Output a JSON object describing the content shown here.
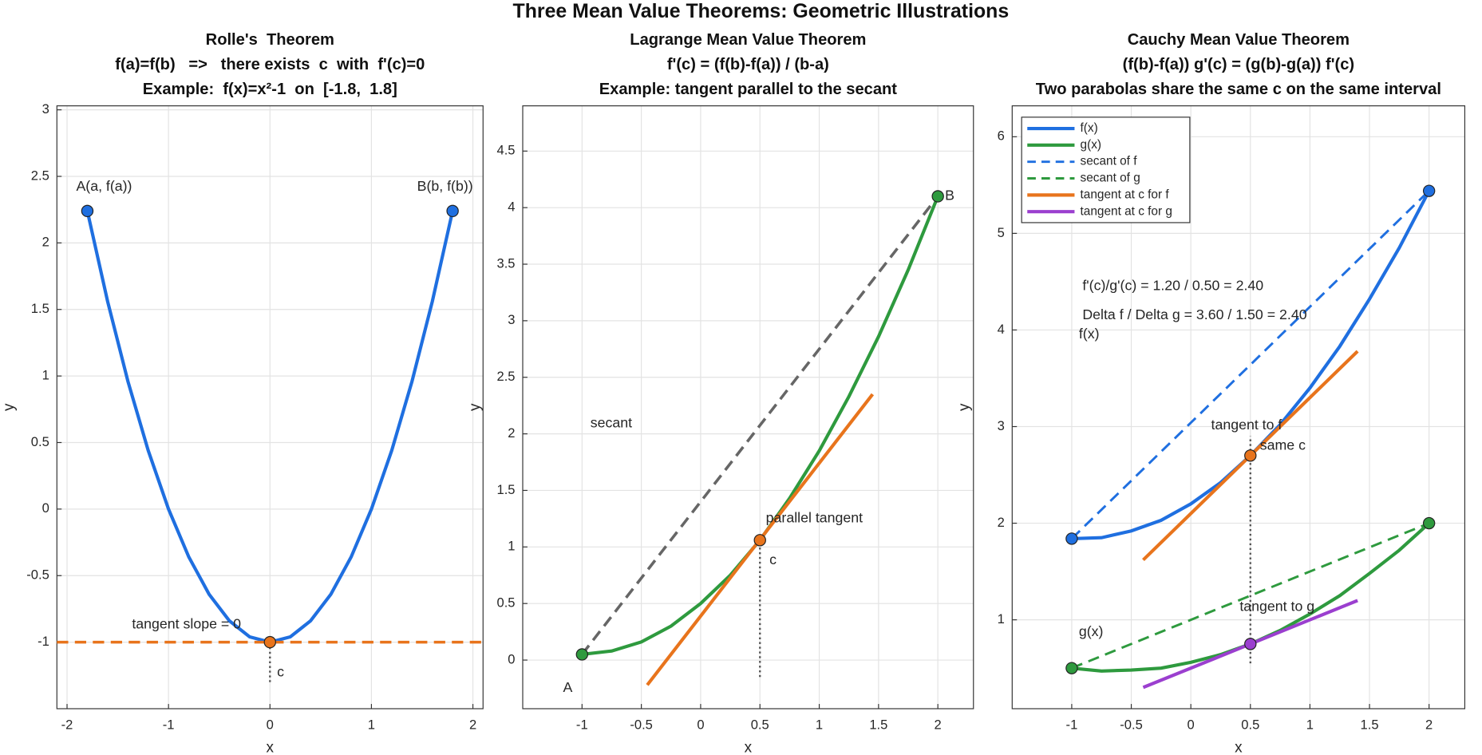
{
  "title": "Three Mean Value Theorems: Geometric Illustrations",
  "chart_data": [
    {
      "type": "line",
      "title": [
        "Rolle's  Theorem",
        "f(a)=f(b)   =>   there exists  c  with  f'(c)=0",
        "Example:  f(x)=x²-1  on  [-1.8,  1.8]"
      ],
      "xlabel": "x",
      "ylabel": "y",
      "xlim": [
        -2.1,
        2.1
      ],
      "ylim": [
        -1.5,
        3.03
      ],
      "xticks": [
        -2,
        -1,
        0,
        1,
        2
      ],
      "yticks": [
        -1,
        -0.5,
        0,
        0.5,
        1,
        1.5,
        2,
        2.5,
        3
      ],
      "grid": true,
      "series": [
        {
          "style": "solid",
          "color": "#1f6fe0",
          "x": [
            -1.8,
            -1.6,
            -1.4,
            -1.2,
            -1,
            -0.8,
            -0.6,
            -0.4,
            -0.2,
            0,
            0.2,
            0.4,
            0.6,
            0.8,
            1,
            1.2,
            1.4,
            1.6,
            1.8
          ],
          "values": [
            2.24,
            1.56,
            0.96,
            0.44,
            0,
            -0.36,
            -0.64,
            -0.84,
            -0.96,
            -1,
            -0.96,
            -0.84,
            -0.64,
            -0.36,
            0,
            0.44,
            0.96,
            1.56,
            2.24
          ]
        },
        {
          "style": "dashed",
          "color": "#e8741c",
          "x": [
            -2.1,
            2.1
          ],
          "values": [
            -1,
            -1
          ]
        },
        {
          "style": "dotted",
          "color": "#555555",
          "x": [
            0,
            0
          ],
          "values": [
            -1.3,
            -1
          ]
        },
        {
          "style": "marker",
          "color": "#1f6fe0",
          "x": [
            -1.8,
            1.8
          ],
          "values": [
            2.24,
            2.24
          ]
        },
        {
          "style": "marker",
          "color": "#e8741c",
          "x": [
            0
          ],
          "values": [
            -1
          ]
        }
      ],
      "annotations": [
        {
          "text": "A(a, f(a))",
          "color": "#222222"
        },
        {
          "text": "B(b, f(b))",
          "color": "#222222"
        },
        {
          "text": "tangent slope = 0",
          "color": "#e8741c"
        },
        {
          "text": "c",
          "color": "#222222"
        }
      ]
    },
    {
      "type": "line",
      "title": [
        "Lagrange Mean Value Theorem",
        "f'(c) = (f(b)-f(a)) / (b-a)",
        "Example: tangent parallel to the secant"
      ],
      "xlabel": "x",
      "ylabel": "y",
      "xlim": [
        -1.5,
        2.3
      ],
      "ylim": [
        -0.43,
        4.9
      ],
      "xticks": [
        -1,
        -0.5,
        0,
        0.5,
        1,
        1.5,
        2
      ],
      "yticks": [
        0,
        0.5,
        1,
        1.5,
        2,
        2.5,
        3,
        3.5,
        4,
        4.5
      ],
      "grid": true,
      "series": [
        {
          "style": "dashed",
          "color": "#666666",
          "x": [
            -1,
            2
          ],
          "values": [
            0.05,
            4.1
          ]
        },
        {
          "style": "solid",
          "color": "#2e9a3e",
          "x": [
            -1,
            -0.75,
            -0.5,
            -0.25,
            0,
            0.25,
            0.5,
            0.75,
            1,
            1.25,
            1.5,
            1.75,
            2
          ],
          "values": [
            0.05,
            0.08,
            0.16,
            0.3,
            0.5,
            0.75,
            1.06,
            1.43,
            1.85,
            2.33,
            2.86,
            3.45,
            4.1
          ]
        },
        {
          "style": "solid",
          "color": "#e8741c",
          "x": [
            -0.45,
            1.45
          ],
          "values": [
            -0.22,
            2.35
          ]
        },
        {
          "style": "dotted",
          "color": "#555555",
          "x": [
            0.5,
            0.5
          ],
          "values": [
            -0.15,
            1.06
          ]
        },
        {
          "style": "marker",
          "color": "#2e9a3e",
          "x": [
            -1,
            2
          ],
          "values": [
            0.05,
            4.1
          ]
        },
        {
          "style": "marker",
          "color": "#e8741c",
          "x": [
            0.5
          ],
          "values": [
            1.06
          ]
        }
      ],
      "annotations": [
        {
          "text": "secant",
          "color": "#666666"
        },
        {
          "text": "parallel tangent",
          "color": "#e8741c"
        },
        {
          "text": "c",
          "color": "#222222"
        },
        {
          "text": "A",
          "color": "#222222"
        },
        {
          "text": "B",
          "color": "#222222"
        }
      ]
    },
    {
      "type": "line",
      "title": [
        "Cauchy Mean Value Theorem",
        "(f(b)-f(a)) g'(c) = (g(b)-g(a)) f'(c)",
        "Two parabolas share the same c on the same interval"
      ],
      "xlabel": "x",
      "ylabel": "y",
      "xlim": [
        -1.5,
        2.3
      ],
      "ylim": [
        0.08,
        6.32
      ],
      "xticks": [
        -1,
        -0.5,
        0,
        0.5,
        1,
        1.5,
        2
      ],
      "yticks": [
        1,
        2,
        3,
        4,
        5,
        6
      ],
      "grid": true,
      "legend": "upper left",
      "series": [
        {
          "name": "f(x)",
          "style": "solid",
          "color": "#1f6fe0",
          "x": [
            -1,
            -0.75,
            -0.5,
            -0.25,
            0,
            0.25,
            0.5,
            0.75,
            1,
            1.25,
            1.5,
            1.75,
            2
          ],
          "values": [
            1.84,
            1.85,
            1.92,
            2.03,
            2.2,
            2.42,
            2.7,
            3.02,
            3.4,
            3.83,
            4.32,
            4.85,
            5.44
          ]
        },
        {
          "name": "g(x)",
          "style": "solid",
          "color": "#2e9a3e",
          "x": [
            -1,
            -0.75,
            -0.5,
            -0.25,
            0,
            0.25,
            0.5,
            0.75,
            1,
            1.25,
            1.5,
            1.75,
            2
          ],
          "values": [
            0.5,
            0.47,
            0.48,
            0.5,
            0.56,
            0.64,
            0.75,
            0.89,
            1.06,
            1.25,
            1.48,
            1.72,
            2
          ]
        },
        {
          "name": "secant of f",
          "style": "dashed",
          "color": "#1f6fe0",
          "x": [
            -1,
            2
          ],
          "values": [
            1.84,
            5.44
          ]
        },
        {
          "name": "secant of g",
          "style": "dashed",
          "color": "#2e9a3e",
          "x": [
            -1,
            2
          ],
          "values": [
            0.5,
            2
          ]
        },
        {
          "name": "tangent at c for f",
          "style": "solid",
          "color": "#e8741c",
          "x": [
            -0.4,
            1.4
          ],
          "values": [
            1.62,
            3.78
          ]
        },
        {
          "name": "tangent at c for g",
          "style": "solid",
          "color": "#9b3fcf",
          "x": [
            -0.4,
            1.4
          ],
          "values": [
            0.3,
            1.2
          ]
        },
        {
          "style": "dotted",
          "color": "#555555",
          "x": [
            0.5,
            0.5
          ],
          "values": [
            0.55,
            2.9
          ]
        },
        {
          "style": "marker",
          "color": "#1f6fe0",
          "x": [
            -1,
            2
          ],
          "values": [
            1.84,
            5.44
          ]
        },
        {
          "style": "marker",
          "color": "#2e9a3e",
          "x": [
            -1,
            2
          ],
          "values": [
            0.5,
            2
          ]
        },
        {
          "style": "marker",
          "color": "#e8741c",
          "x": [
            0.5
          ],
          "values": [
            2.7
          ]
        },
        {
          "style": "marker",
          "color": "#9b3fcf",
          "x": [
            0.5
          ],
          "values": [
            0.75
          ]
        }
      ],
      "annotations": [
        {
          "text": "f(x)",
          "color": "#1f6fe0"
        },
        {
          "text": "g(x)",
          "color": "#2e9a3e"
        },
        {
          "text": "tangent to f",
          "color": "#e8741c"
        },
        {
          "text": "same c",
          "color": "#222222"
        },
        {
          "text": "tangent to g",
          "color": "#9b3fcf"
        },
        {
          "text": "f'(c)/g'(c) = 1.20 / 0.50 = 2.40",
          "color": "#222222"
        },
        {
          "text": "Delta f / Delta g = 3.60 / 1.50 = 2.40",
          "color": "#222222"
        }
      ]
    }
  ]
}
